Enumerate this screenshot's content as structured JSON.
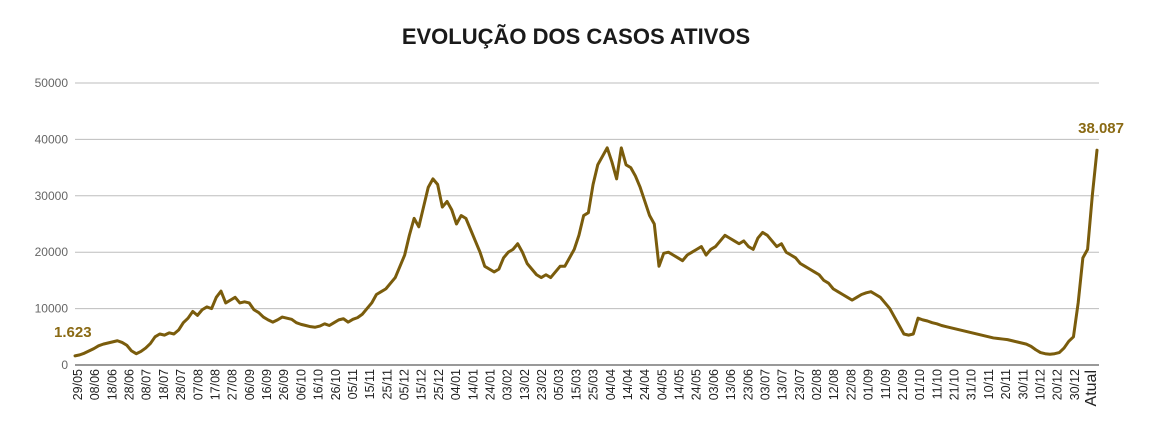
{
  "chart_data": {
    "type": "line",
    "title": "EVOLUÇÃO DOS CASOS ATIVOS",
    "xlabel": "",
    "ylabel": "",
    "ylim": [
      0,
      50000
    ],
    "yticks": [
      "0",
      "10000",
      "20000",
      "30000",
      "40000",
      "50000"
    ],
    "grid": true,
    "legend": "none",
    "colors": {
      "line": "#7a5c0c",
      "labels": "#8a6a14"
    },
    "tick_labels": [
      "29/05",
      "08/06",
      "18/06",
      "28/06",
      "08/07",
      "18/07",
      "28/07",
      "07/08",
      "17/08",
      "27/08",
      "06/09",
      "16/09",
      "26/09",
      "06/10",
      "16/10",
      "26/10",
      "05/11",
      "15/11",
      "25/11",
      "05/12",
      "15/12",
      "25/12",
      "04/01",
      "14/01",
      "24/01",
      "03/02",
      "13/02",
      "23/02",
      "05/03",
      "15/03",
      "25/03",
      "04/04",
      "14/04",
      "24/04",
      "04/05",
      "14/05",
      "24/05",
      "03/06",
      "13/06",
      "23/06",
      "03/07",
      "13/07",
      "23/07",
      "02/08",
      "12/08",
      "22/08",
      "01/09",
      "11/09",
      "21/09",
      "01/10",
      "11/10",
      "21/10",
      "31/10",
      "10/11",
      "20/11",
      "30/11",
      "10/12",
      "20/12",
      "30/12",
      "Atual"
    ],
    "series": [
      {
        "values": [
          1623,
          1800,
          2100,
          2500,
          2900,
          3400,
          3700,
          3900,
          4100,
          4300,
          4000,
          3500,
          2500,
          2000,
          2400,
          3000,
          3800,
          5000,
          5500,
          5300,
          5700,
          5500,
          6200,
          7500,
          8300,
          9500,
          8800,
          9800,
          10300,
          10000,
          12000,
          13100,
          11000,
          11500,
          12000,
          11000,
          11200,
          11000,
          9800,
          9300,
          8500,
          8000,
          7600,
          8000,
          8500,
          8300,
          8100,
          7500,
          7200,
          7000,
          6800,
          6700,
          6900,
          7300,
          7000,
          7500,
          8000,
          8200,
          7600,
          8100,
          8400,
          9000,
          10000,
          11000,
          12500,
          13000,
          13500,
          14500,
          15500,
          17500,
          19500,
          23000,
          26000,
          24500,
          28000,
          31500,
          33000,
          32000,
          28000,
          29000,
          27500,
          25000,
          26500,
          26000,
          24000,
          22000,
          20000,
          17500,
          17000,
          16500,
          17000,
          19000,
          20000,
          20500,
          21500,
          20000,
          18000,
          17000,
          16000,
          15500,
          16000,
          15500,
          16500,
          17500,
          17500,
          19000,
          20500,
          23000,
          26500,
          27000,
          32000,
          35500,
          37000,
          38500,
          36000,
          33000,
          38500,
          35500,
          35000,
          33500,
          31500,
          29000,
          26500,
          25000,
          17500,
          19800,
          20000,
          19500,
          19000,
          18500,
          19500,
          20000,
          20500,
          21000,
          19500,
          20500,
          21000,
          22000,
          23000,
          22500,
          22000,
          21500,
          22000,
          21000,
          20500,
          22500,
          23500,
          23000,
          22000,
          21000,
          21500,
          20000,
          19500,
          19000,
          18000,
          17500,
          17000,
          16500,
          16000,
          15000,
          14500,
          13500,
          13000,
          12500,
          12000,
          11500,
          12000,
          12500,
          12800,
          13000,
          12500,
          12000,
          11000,
          10000,
          8500,
          7000,
          5500,
          5300,
          5500,
          8300,
          8000,
          7800,
          7500,
          7300,
          7000,
          6800,
          6600,
          6400,
          6200,
          6000,
          5800,
          5600,
          5400,
          5200,
          5000,
          4800,
          4700,
          4600,
          4500,
          4300,
          4100,
          3900,
          3700,
          3300,
          2700,
          2200,
          2000,
          1900,
          2000,
          2200,
          3000,
          4200,
          5000,
          11000,
          19000,
          20500,
          30000,
          38087
        ]
      }
    ],
    "data_labels": {
      "start": "1.623",
      "end": "38.087"
    }
  }
}
